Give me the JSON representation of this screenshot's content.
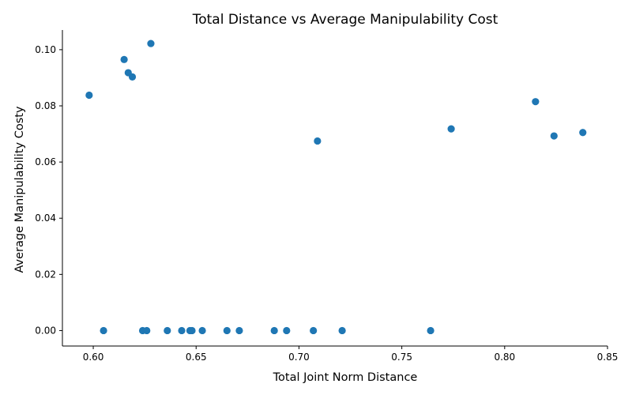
{
  "chart_data": {
    "type": "scatter",
    "title": "Total Distance vs Average Manipulability Cost",
    "xlabel": "Total Joint Norm Distance",
    "ylabel": "Average Manipulability Costy",
    "xlim": [
      0.585,
      0.85
    ],
    "ylim": [
      -0.0055,
      0.107
    ],
    "xticks": [
      0.6,
      0.65,
      0.7,
      0.75,
      0.8,
      0.85
    ],
    "xtick_labels": [
      "0.60",
      "0.65",
      "0.70",
      "0.75",
      "0.80",
      "0.85"
    ],
    "yticks": [
      0.0,
      0.02,
      0.04,
      0.06,
      0.08,
      0.1
    ],
    "ytick_labels": [
      "0.00",
      "0.02",
      "0.04",
      "0.06",
      "0.08",
      "0.10"
    ],
    "grid": false,
    "marker_color": "#1f77b4",
    "points": [
      {
        "x": 0.598,
        "y": 0.0838
      },
      {
        "x": 0.615,
        "y": 0.0965
      },
      {
        "x": 0.617,
        "y": 0.0918
      },
      {
        "x": 0.619,
        "y": 0.0903
      },
      {
        "x": 0.628,
        "y": 0.1022
      },
      {
        "x": 0.709,
        "y": 0.0675
      },
      {
        "x": 0.774,
        "y": 0.0718
      },
      {
        "x": 0.815,
        "y": 0.0815
      },
      {
        "x": 0.824,
        "y": 0.0693
      },
      {
        "x": 0.838,
        "y": 0.0705
      },
      {
        "x": 0.605,
        "y": 0.0
      },
      {
        "x": 0.624,
        "y": 0.0
      },
      {
        "x": 0.626,
        "y": 0.0
      },
      {
        "x": 0.636,
        "y": 0.0
      },
      {
        "x": 0.643,
        "y": 0.0
      },
      {
        "x": 0.647,
        "y": 0.0
      },
      {
        "x": 0.648,
        "y": 0.0
      },
      {
        "x": 0.653,
        "y": 0.0
      },
      {
        "x": 0.665,
        "y": 0.0
      },
      {
        "x": 0.671,
        "y": 0.0
      },
      {
        "x": 0.688,
        "y": 0.0
      },
      {
        "x": 0.694,
        "y": 0.0
      },
      {
        "x": 0.707,
        "y": 0.0
      },
      {
        "x": 0.721,
        "y": 0.0
      },
      {
        "x": 0.764,
        "y": 0.0
      }
    ]
  }
}
